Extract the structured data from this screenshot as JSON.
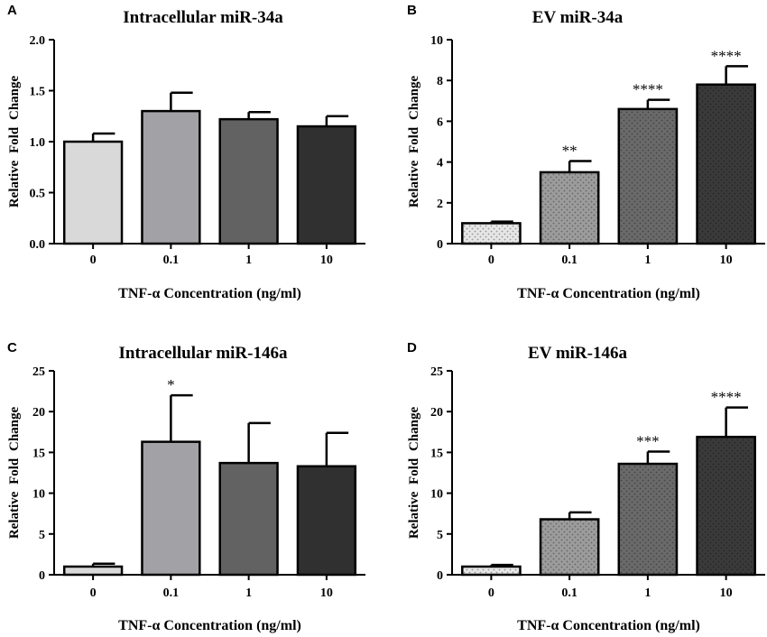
{
  "chart_data": [
    {
      "panel": "A",
      "type": "bar",
      "title": "Intracellular miR-34a",
      "xlabel": "TNF-α Concentration (ng/ml)",
      "ylabel": "Relative  Fold  Change",
      "categories": [
        "0",
        "0.1",
        "1",
        "10"
      ],
      "values": [
        1.0,
        1.3,
        1.22,
        1.15
      ],
      "errors": [
        0.08,
        0.18,
        0.07,
        0.1
      ],
      "significance": [
        "",
        "",
        "",
        ""
      ],
      "ylim": [
        0,
        2.0
      ],
      "yticks": [
        "0.0",
        "0.5",
        "1.0",
        "1.5",
        "2.0"
      ],
      "bar_colors": [
        "#d9d9d9",
        "#a2a2a6",
        "#626262",
        "#303030"
      ],
      "pattern": "solid"
    },
    {
      "panel": "B",
      "type": "bar",
      "title": "EV miR-34a",
      "xlabel": "TNF-α Concentration (ng/ml)",
      "ylabel": "Relative  Fold  Change",
      "categories": [
        "0",
        "0.1",
        "1",
        "10"
      ],
      "values": [
        1.0,
        3.5,
        6.6,
        7.8
      ],
      "errors": [
        0.08,
        0.55,
        0.45,
        0.9
      ],
      "significance": [
        "",
        "**",
        "****",
        "****"
      ],
      "ylim": [
        0,
        10
      ],
      "yticks": [
        "0",
        "2",
        "4",
        "6",
        "8",
        "10"
      ],
      "bar_colors": [
        "#e6e6e6",
        "#9c9c9c",
        "#6a6a6a",
        "#3a3a3a"
      ],
      "pattern": "dotted"
    },
    {
      "panel": "C",
      "type": "bar",
      "title": "Intracellular miR-146a",
      "xlabel": "TNF-α Concentration (ng/ml)",
      "ylabel": "Relative  Fold  Change",
      "categories": [
        "0",
        "0.1",
        "1",
        "10"
      ],
      "values": [
        1.0,
        16.3,
        13.7,
        13.3
      ],
      "errors": [
        0.35,
        5.7,
        4.9,
        4.1
      ],
      "significance": [
        "",
        "*",
        "",
        ""
      ],
      "ylim": [
        0,
        25
      ],
      "yticks": [
        "0",
        "5",
        "10",
        "15",
        "20",
        "25"
      ],
      "bar_colors": [
        "#d9d9d9",
        "#a2a2a6",
        "#626262",
        "#303030"
      ],
      "pattern": "solid"
    },
    {
      "panel": "D",
      "type": "bar",
      "title": "EV miR-146a",
      "xlabel": "TNF-α Concentration (ng/ml)",
      "ylabel": "Relative  Fold  Change",
      "categories": [
        "0",
        "0.1",
        "1",
        "10"
      ],
      "values": [
        1.0,
        6.8,
        13.6,
        16.9
      ],
      "errors": [
        0.2,
        0.85,
        1.5,
        3.6
      ],
      "significance": [
        "",
        "",
        "***",
        "****"
      ],
      "ylim": [
        0,
        25
      ],
      "yticks": [
        "0",
        "5",
        "10",
        "15",
        "20",
        "25"
      ],
      "bar_colors": [
        "#e6e6e6",
        "#9c9c9c",
        "#6a6a6a",
        "#3a3a3a"
      ],
      "pattern": "dotted"
    }
  ]
}
